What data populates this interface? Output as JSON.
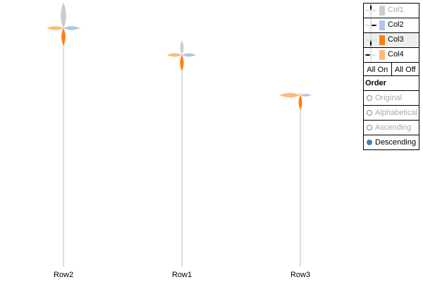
{
  "chart_data": {
    "type": "radial-glyph",
    "categories": [
      "Row2",
      "Row1",
      "Row3"
    ],
    "series": [
      {
        "name": "Col1",
        "values": [
          1.0,
          0.57,
          0.13
        ],
        "enabled": false
      },
      {
        "name": "Col2",
        "values": [
          0.64,
          0.55,
          0.43
        ],
        "enabled": true
      },
      {
        "name": "Col3",
        "values": [
          0.68,
          0.62,
          0.57
        ],
        "enabled": true
      },
      {
        "name": "Col4",
        "values": [
          0.64,
          0.57,
          0.8
        ],
        "enabled": true
      }
    ],
    "stem_totals": [
      338,
      300,
      243
    ],
    "colors": {
      "Col1": "#cccccc",
      "Col2": "#aec7e8",
      "Col3": "#ff7f0e",
      "Col4": "#ffbb78"
    },
    "axis_color": "#bbbbbb"
  },
  "controls": {
    "all_on": "All On",
    "all_off": "All Off",
    "order_title": "Order",
    "order_options": [
      "Original",
      "Alphabetical",
      "Ascending",
      "Descending"
    ],
    "order_selected": "Descending",
    "highlighted_series": "Col3"
  }
}
